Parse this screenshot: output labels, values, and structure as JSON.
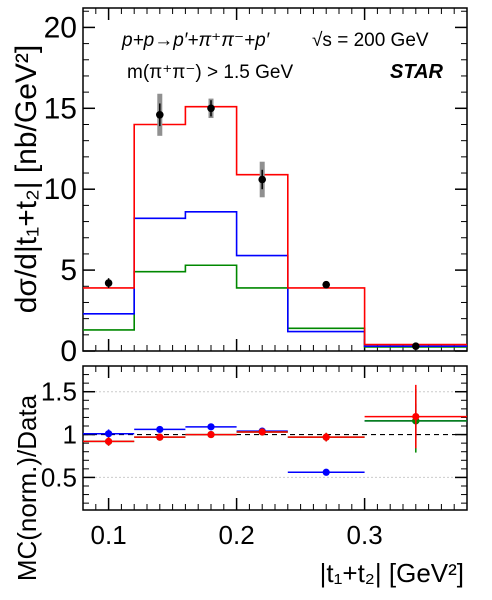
{
  "chart_data": [
    {
      "type": "histogram",
      "panel": "main",
      "ylabel": "dσ/d|t₁+t₂| [nb/GeV²]",
      "xlim": [
        0.08,
        0.38
      ],
      "ylim": [
        0,
        21.2
      ],
      "yticks": [
        "0",
        "5",
        "10",
        "15",
        "20"
      ],
      "annotations": {
        "process": "p+p→p′+π⁺π⁻+p′",
        "energy": "√s = 200 GeV",
        "mass_cut": "m(π⁺π⁻) > 1.5 GeV",
        "experiment": "STAR"
      },
      "bin_edges": [
        0.08,
        0.12,
        0.16,
        0.2,
        0.24,
        0.3,
        0.38
      ],
      "series": [
        {
          "color": "#ff0000",
          "style": "histogram",
          "values": [
            3.9,
            14.0,
            15.1,
            10.9,
            3.9,
            0.4
          ]
        },
        {
          "color": "#0000ff",
          "style": "histogram",
          "values": [
            2.3,
            8.2,
            8.6,
            5.9,
            1.2,
            0.3
          ]
        },
        {
          "color": "#008800",
          "style": "histogram",
          "values": [
            1.3,
            4.9,
            5.3,
            3.9,
            1.4,
            0.25
          ]
        },
        {
          "style": "points",
          "color": "#000000",
          "x": [
            0.1,
            0.14,
            0.18,
            0.22,
            0.27,
            0.34
          ],
          "y": [
            4.2,
            14.6,
            15.0,
            10.6,
            4.1,
            0.3
          ],
          "stat_err": [
            0.3,
            0.7,
            0.5,
            0.6,
            0.2,
            0.1
          ],
          "syst_err": [
            0.2,
            1.3,
            0.6,
            1.1,
            0.15,
            0.05
          ]
        }
      ]
    },
    {
      "type": "ratio",
      "panel": "ratio",
      "ylabel": "MC(norm.)/Data",
      "xlabel": "|t₁+t₂| [GeV²]",
      "xlim": [
        0.08,
        0.38
      ],
      "ylim": [
        0.12,
        1.8
      ],
      "yticks": [
        "0.5",
        "1",
        "1.5"
      ],
      "xticks": [
        "0.1",
        "0.2",
        "0.3"
      ],
      "reference_line": 1,
      "series": [
        {
          "color": "#0000ff",
          "x": [
            0.1,
            0.14,
            0.18,
            0.22,
            0.27,
            0.34
          ],
          "xerr": [
            0.02,
            0.02,
            0.02,
            0.02,
            0.03,
            0.04
          ],
          "y": [
            1.01,
            1.06,
            1.09,
            1.04,
            0.56,
            1.16
          ],
          "yerr": [
            0.05,
            0.0,
            0.0,
            0.02,
            0.0,
            0.2
          ]
        },
        {
          "color": "#008800",
          "x": [
            0.1,
            0.14,
            0.18,
            0.22,
            0.27,
            0.34
          ],
          "xerr": [
            0.02,
            0.02,
            0.02,
            0.02,
            0.03,
            0.04
          ],
          "y": [
            0.92,
            0.97,
            1.0,
            1.03,
            0.97,
            1.16
          ],
          "yerr": [
            0.05,
            0.02,
            0.02,
            0.03,
            0.05,
            0.37
          ]
        },
        {
          "color": "#ff0000",
          "x": [
            0.1,
            0.14,
            0.18,
            0.22,
            0.27,
            0.34
          ],
          "xerr": [
            0.02,
            0.02,
            0.02,
            0.02,
            0.03,
            0.04
          ],
          "y": [
            0.92,
            0.97,
            1.0,
            1.03,
            0.97,
            1.21
          ],
          "yerr": [
            0.05,
            0.02,
            0.02,
            0.03,
            0.05,
            0.37
          ]
        }
      ]
    }
  ]
}
